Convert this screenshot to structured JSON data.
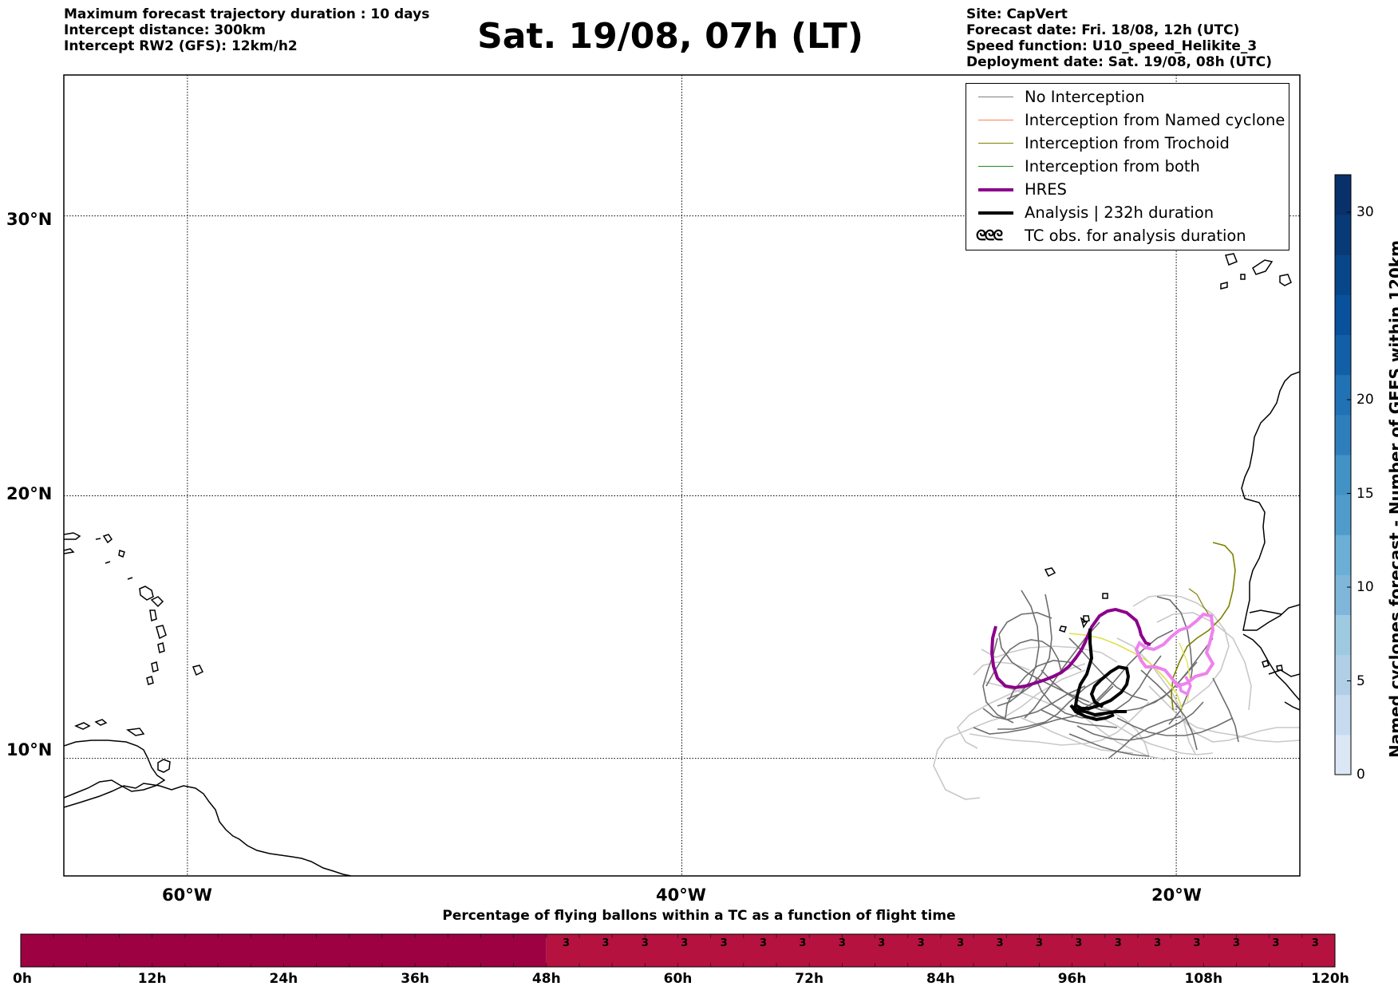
{
  "header": {
    "left_lines": [
      "Maximum forecast trajectory duration : 10 days",
      "Intercept distance: 300km",
      "Intercept RW2 (GFS):  12km/h2"
    ],
    "title": "Sat. 19/08, 07h (LT)",
    "right_lines": [
      "Site: CapVert",
      "Forecast date: Fri. 18/08, 12h (UTC)",
      "Speed function: U10_speed_Helikite_3",
      "Deployment date: Sat. 19/08, 08h (UTC)"
    ]
  },
  "map": {
    "lat_labels": [
      "30°N",
      "20°N",
      "10°N"
    ],
    "lon_labels": [
      "60°W",
      "40°W",
      "20°W"
    ],
    "lat_values": [
      30,
      20,
      10
    ],
    "lon_values": [
      -60,
      -40,
      -20
    ],
    "extent": {
      "lon_min": -65,
      "lon_max": -15,
      "lat_min": 5.4,
      "lat_max": 34.7
    }
  },
  "legend": {
    "items": [
      {
        "label": "No Interception",
        "color": "#808080",
        "style": "thin"
      },
      {
        "label": "Interception from Named cyclone",
        "color": "#ff7f50",
        "style": "thin"
      },
      {
        "label": "Interception from Trochoid",
        "color": "#808000",
        "style": "thin"
      },
      {
        "label": "Interception from both",
        "color": "#228b22",
        "style": "thin"
      },
      {
        "label": "HRES",
        "color": "#8b008b",
        "style": "thick"
      },
      {
        "label": "Analysis | 232h duration",
        "color": "#000000",
        "style": "thick"
      },
      {
        "label": "TC obs. for analysis duration",
        "color": "#000000",
        "style": "symbol"
      }
    ]
  },
  "colorbar": {
    "title": "Named cyclones forecast - Number of GEFS within 120km",
    "ticks": [
      "0",
      "5",
      "10",
      "15",
      "20",
      "30"
    ],
    "tick_values": [
      0,
      5,
      10,
      15,
      20,
      30
    ],
    "max": 32,
    "colors": [
      "#dbe7f5",
      "#c6dbef",
      "#b0cfe6",
      "#9ecae1",
      "#7fb6da",
      "#6baed6",
      "#4f9bcb",
      "#4292c6",
      "#2f7ebc",
      "#2171b5",
      "#135fa7",
      "#08519c",
      "#08468a",
      "#083a78",
      "#08306b"
    ]
  },
  "bottom_bar": {
    "title": "Percentage of flying ballons within a TC as a function of flight time",
    "ticks": [
      "0h",
      "12h",
      "24h",
      "36h",
      "48h",
      "60h",
      "72h",
      "84h",
      "96h",
      "108h",
      "120h"
    ],
    "tick_hours": [
      0,
      12,
      24,
      36,
      48,
      60,
      72,
      84,
      96,
      108,
      120
    ],
    "zero_color": "#9e0142",
    "nonzero_color": "#b5123f",
    "cells_from_48h": [
      "3",
      "3",
      "3",
      "3",
      "3",
      "3",
      "3",
      "3",
      "3",
      "3",
      "3",
      "3",
      "3",
      "3",
      "3",
      "3",
      "3",
      "3",
      "3",
      "3",
      "3",
      "3",
      "3",
      "3",
      "3",
      "3",
      "3",
      "3",
      "3",
      "3",
      "3",
      "3",
      "3",
      "3",
      "3",
      "3",
      "3",
      "3",
      "3",
      "3"
    ],
    "cell_hours": 3
  }
}
